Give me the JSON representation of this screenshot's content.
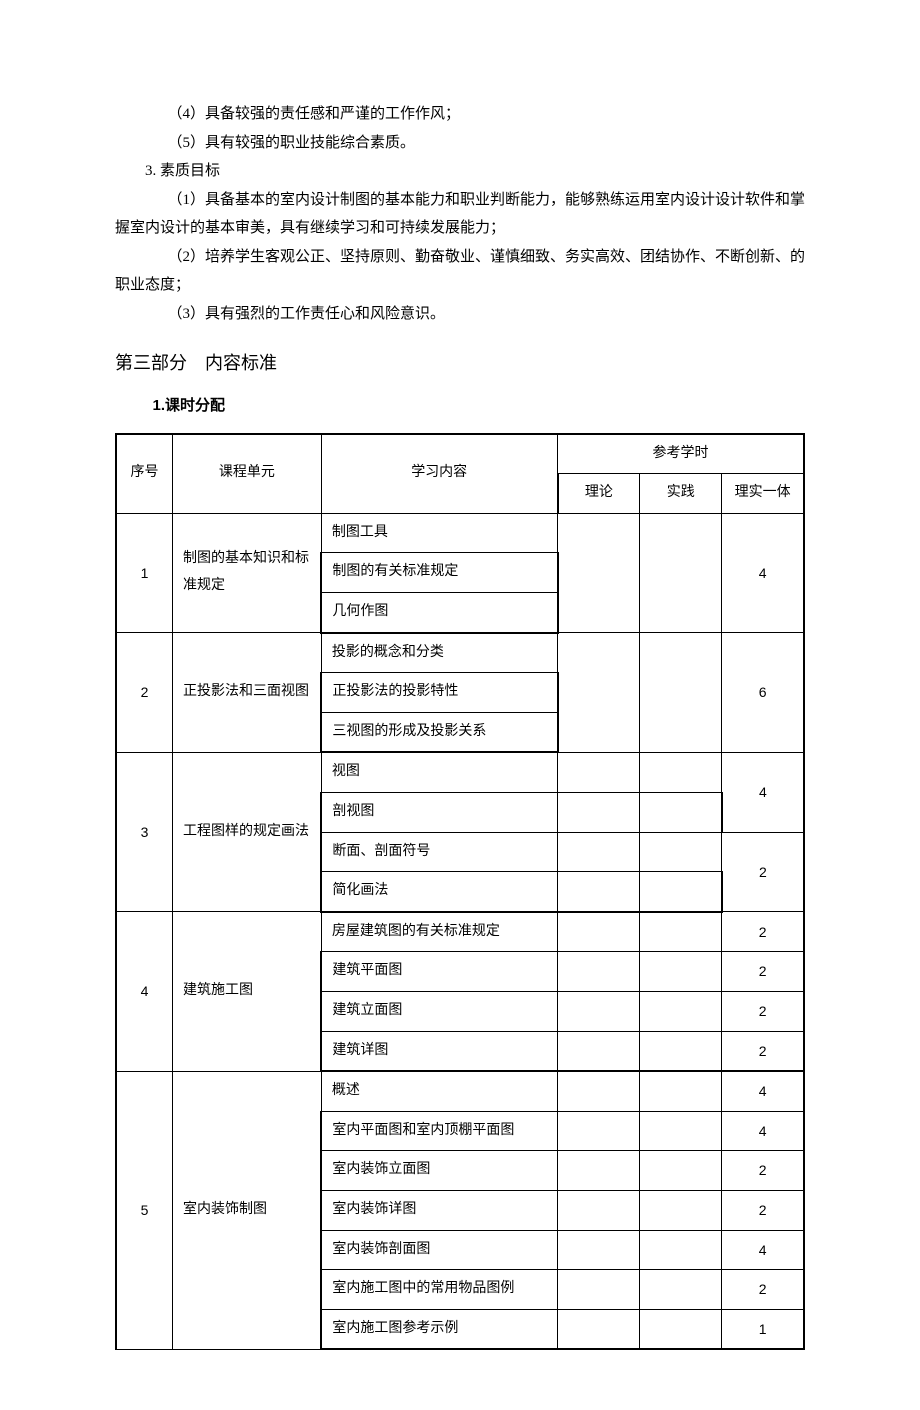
{
  "intro": {
    "items": [
      "（4）具备较强的责任感和严谨的工作作风；",
      "（5）具有较强的职业技能综合素质。"
    ],
    "point3": "3. 素质目标",
    "p3_items": [
      "（1）具备基本的室内设计制图的基本能力和职业判断能力，能够熟练运用室内设计设计软件和掌握室内设计的基本审美，具有继续学习和可持续发展能力；",
      "（2）培养学生客观公正、坚持原则、勤奋敬业、谨慎细致、务实高效、团结协作、不断创新、的职业态度；",
      "（3）具有强烈的工作责任心和风险意识。"
    ]
  },
  "section3_title": "第三部分　内容标准",
  "subheading": "1.课时分配",
  "table": {
    "headers": {
      "seq": "序号",
      "unit": "课程单元",
      "content": "学习内容",
      "hours_group": "参考学时",
      "theory": "理论",
      "practice": "实践",
      "combined": "理实一体"
    },
    "units": [
      {
        "seq": "1",
        "unit": "制图的基本知识和标准规定",
        "contents": [
          "制图工具",
          "制图的有关标准规定",
          "几何作图"
        ],
        "combined": [
          "4"
        ],
        "merge_combined": true
      },
      {
        "seq": "2",
        "unit": "正投影法和三面视图",
        "contents": [
          "投影的概念和分类",
          "正投影法的投影特性",
          "三视图的形成及投影关系"
        ],
        "combined": [
          "6"
        ],
        "merge_combined": true
      },
      {
        "seq": "3",
        "unit": "工程图样的规定画法",
        "contents": [
          "视图",
          "剖视图",
          "断面、剖面符号",
          "简化画法"
        ],
        "combined": [
          "",
          "4",
          "2",
          ""
        ],
        "merge_pairs": [
          [
            0,
            1
          ],
          [
            2,
            3
          ]
        ]
      },
      {
        "seq": "4",
        "unit": "建筑施工图",
        "contents": [
          "房屋建筑图的有关标准规定",
          "建筑平面图",
          "建筑立面图",
          "建筑详图"
        ],
        "combined": [
          "2",
          "2",
          "2",
          "2"
        ]
      },
      {
        "seq": "5",
        "unit": "室内装饰制图",
        "contents": [
          "概述",
          "室内平面图和室内顶棚平面图",
          "室内装饰立面图",
          "室内装饰详图",
          "室内装饰剖面图",
          "室内施工图中的常用物品图例",
          "室内施工图参考示例"
        ],
        "combined": [
          "4",
          "4",
          "2",
          "2",
          "4",
          "2",
          "1"
        ]
      }
    ]
  }
}
